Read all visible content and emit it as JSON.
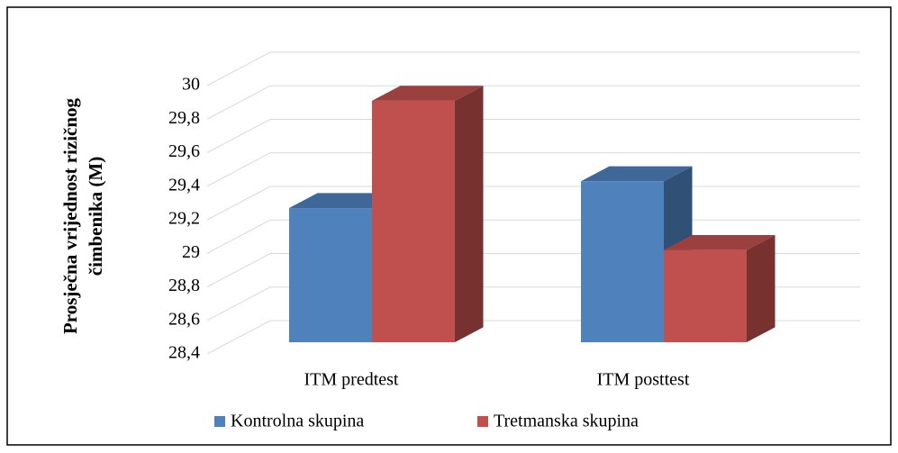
{
  "chart_data": {
    "type": "bar3d",
    "ylabel": [
      "Prosječna vrijednost rizičnog",
      "čimbenika (M)"
    ],
    "categories": [
      "ITM predtest",
      "ITM posttest"
    ],
    "series": [
      {
        "name": "Kontrolna skupina",
        "color": "#4f81bd",
        "values": [
          29.2,
          29.36
        ]
      },
      {
        "name": "Tretmanska skupina",
        "color": "#c0504d",
        "values": [
          29.84,
          28.95
        ]
      }
    ],
    "ylim": [
      28.4,
      30
    ],
    "yticks": [
      {
        "value": 28.4,
        "label": "28,4"
      },
      {
        "value": 28.6,
        "label": "28,6"
      },
      {
        "value": 28.8,
        "label": "28,8"
      },
      29,
      {
        "value": 29.2,
        "label": "29,2"
      },
      {
        "value": 29.4,
        "label": "29,4"
      },
      {
        "value": 29.6,
        "label": "29,6"
      },
      {
        "value": 29.8,
        "label": "29,8"
      },
      30
    ],
    "grid": true,
    "legend": "bottom"
  }
}
